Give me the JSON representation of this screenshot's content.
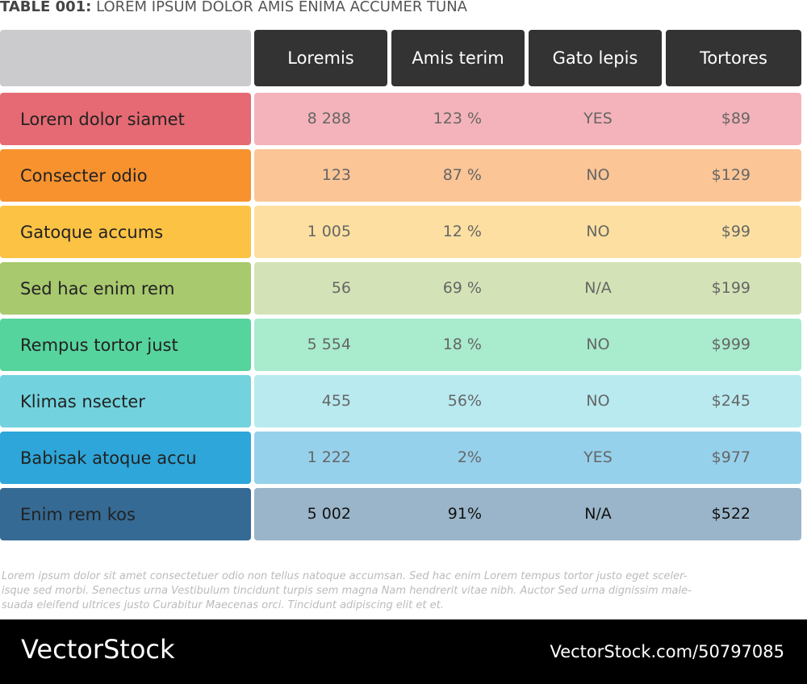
{
  "header": {
    "title_prefix": "TABLE 001:",
    "title": "LOREM IPSUM DOLOR AMIS ENIMA ACCUMER TUNA"
  },
  "table": {
    "columns": [
      "Loremis",
      "Amis terim",
      "Gato lepis",
      "Tortores"
    ],
    "rows": [
      [
        "Lorem dolor siamet",
        "8 288",
        "123 %",
        "YES",
        "$89"
      ],
      [
        "Consecter odio",
        "123",
        "87 %",
        "NO",
        "$129"
      ],
      [
        "Gatoque accums",
        "1 005",
        "12 %",
        "NO",
        "$99"
      ],
      [
        "Sed hac enim rem",
        "56",
        "69 %",
        "N/A",
        "$199"
      ],
      [
        "Rempus tortor just",
        "5 554",
        "18 %",
        "NO",
        "$999"
      ],
      [
        "Klimas nsecter",
        "455",
        "56%",
        "NO",
        "$245"
      ],
      [
        "Babisak atoque accu",
        "1 222",
        "2%",
        "YES",
        "$977"
      ],
      [
        "Enim rem kos",
        "5 002",
        "91%",
        "N/A",
        "$522"
      ]
    ]
  },
  "note": {
    "lines": [
      "Lorem ipsum dolor sit amet consectetuer odio non tellus natoque accumsan. Sed hac enim Lorem tempus tortor justo eget sceler-",
      "isque sed morbi. Senectus urna Vestibulum tincidunt turpis sem magna Nam hendrerit vitae nibh. Auctor Sed urna dignissim male-",
      "suada eleifend ultrices justo Curabitur Maecenas orci. Tincidunt adipiscing elit et et."
    ]
  },
  "footer": {
    "brand": "VectorStock",
    "url": "VectorStock.com/50797085"
  }
}
